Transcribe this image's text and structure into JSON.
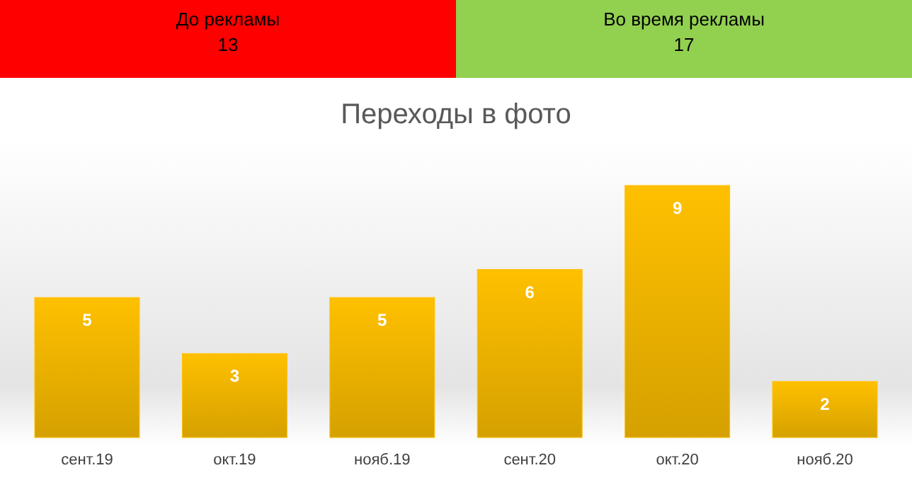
{
  "chart_data": [
    {
      "type": "other",
      "categories": [
        "До рекламы",
        "Во время рекламы"
      ],
      "values": [
        13,
        17
      ],
      "colors": [
        "#ff0000",
        "#92d050"
      ],
      "data_labels": true
    },
    {
      "type": "bar",
      "title": "Переходы в фото",
      "categories": [
        "сент.19",
        "окт.19",
        "нояб.19",
        "сент.20",
        "окт.20",
        "нояб.20"
      ],
      "values": [
        5,
        3,
        5,
        6,
        9,
        2
      ],
      "color": "#ffc000",
      "data_labels": true,
      "tick_labels": "x",
      "grid": false
    }
  ]
}
